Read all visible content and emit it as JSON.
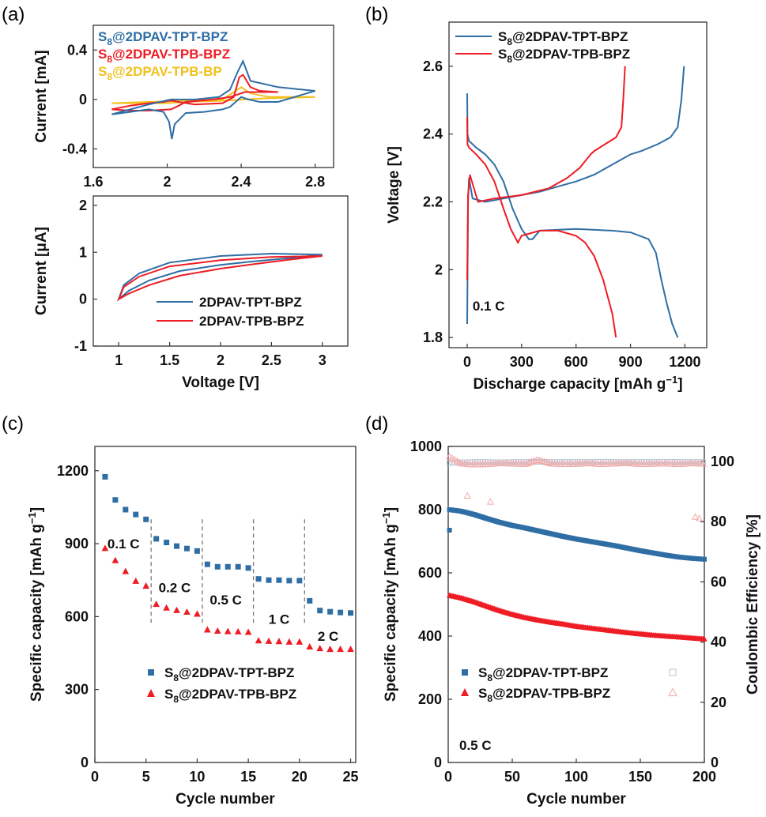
{
  "colors": {
    "tpt": "#2f6ea5",
    "tpb": "#ee1c24",
    "bp": "#f2c01e",
    "ce_tpt": "#b9c7d6",
    "ce_tpb": "#f3a8a8"
  },
  "chart_data": [
    {
      "id": "a_top",
      "panel_label": "(a)",
      "type": "line",
      "xlabel": "",
      "ylabel": "Current [mA]",
      "xlim": [
        1.6,
        2.9
      ],
      "ylim": [
        -0.55,
        0.6
      ],
      "xticks": [
        1.6,
        2.0,
        2.4,
        2.8
      ],
      "xtick_labels": [
        "1.6",
        "2",
        "2.4",
        "2.8"
      ],
      "yticks": [
        -0.4,
        0,
        0.4
      ],
      "ytick_labels": [
        "-0.4",
        "0",
        "0.4"
      ],
      "legend_position": "top-left",
      "legend": [
        {
          "pre": "S",
          "sub": "8",
          "post": "@2DPAV-TPT-BPZ",
          "color_key": "tpt"
        },
        {
          "pre": "S",
          "sub": "8",
          "post": "@2DPAV-TPB-BPZ",
          "color_key": "tpb"
        },
        {
          "pre": "S",
          "sub": "8",
          "post": "@2DPAV-TPB-BP",
          "color_key": "bp"
        }
      ],
      "series": [
        {
          "color_key": "bp",
          "closed": true,
          "x": [
            1.7,
            1.9,
            2.1,
            2.3,
            2.35,
            2.4,
            2.45,
            2.55,
            2.8,
            2.55,
            2.3,
            2.1,
            2.0,
            1.85,
            1.7
          ],
          "y": [
            -0.03,
            -0.02,
            -0.01,
            0.0,
            0.05,
            0.1,
            0.05,
            0.02,
            0.02,
            0.01,
            -0.01,
            -0.02,
            -0.03,
            -0.03,
            -0.03
          ]
        },
        {
          "color_key": "tpb",
          "closed": true,
          "x": [
            1.7,
            1.8,
            1.9,
            1.98,
            2.01,
            2.03,
            2.06,
            2.15,
            2.3,
            2.36,
            2.39,
            2.41,
            2.45,
            2.5,
            2.6,
            2.5,
            2.42,
            2.38,
            2.34,
            2.25,
            2.1,
            2.05,
            2.02,
            1.9,
            1.8,
            1.7
          ],
          "y": [
            -0.08,
            -0.05,
            -0.03,
            -0.02,
            -0.01,
            -0.01,
            -0.02,
            -0.04,
            -0.03,
            0.02,
            0.18,
            0.2,
            0.1,
            0.07,
            0.06,
            0.06,
            0.06,
            0.04,
            0.02,
            0.0,
            -0.02,
            -0.06,
            -0.08,
            -0.09,
            -0.09,
            -0.08
          ]
        },
        {
          "color_key": "tpt",
          "closed": true,
          "x": [
            1.7,
            1.8,
            1.9,
            1.98,
            2.01,
            2.025,
            2.04,
            2.1,
            2.2,
            2.3,
            2.34,
            2.37,
            2.4,
            2.44,
            2.5,
            2.6,
            2.8,
            2.6,
            2.45,
            2.41,
            2.38,
            2.34,
            2.28,
            2.15,
            2.05,
            2.02,
            1.9,
            1.8,
            1.7
          ],
          "y": [
            -0.12,
            -0.1,
            -0.08,
            -0.1,
            -0.18,
            -0.32,
            -0.2,
            -0.11,
            -0.1,
            -0.08,
            -0.06,
            -0.02,
            0.02,
            0.0,
            -0.02,
            -0.02,
            0.07,
            0.1,
            0.15,
            0.31,
            0.22,
            0.08,
            0.02,
            0.0,
            0.0,
            0.0,
            -0.04,
            -0.08,
            -0.12
          ]
        }
      ]
    },
    {
      "id": "a_bottom",
      "panel_label": "",
      "type": "line",
      "xlabel": "Voltage [V]",
      "ylabel_pre": "Current [",
      "ylabel_greek": "μ",
      "ylabel_post": "A]",
      "xlim": [
        0.75,
        3.25
      ],
      "ylim": [
        -1,
        2.2
      ],
      "xticks": [
        1,
        1.5,
        2,
        2.5,
        3
      ],
      "xtick_labels": [
        "1",
        "1.5",
        "2",
        "2.5",
        "3"
      ],
      "yticks": [
        -1,
        0,
        1,
        2
      ],
      "ytick_labels": [
        "-1",
        "0",
        "1",
        "2"
      ],
      "legend_position": "bottom-right",
      "legend": [
        {
          "pre": "2DPAV-TPT-BPZ",
          "sub": "",
          "post": "",
          "color_key": "tpt"
        },
        {
          "pre": "2DPAV-TPB-BPZ",
          "sub": "",
          "post": "",
          "color_key": "tpb"
        }
      ],
      "series": [
        {
          "color_key": "tpt",
          "closed": true,
          "x": [
            1.0,
            1.05,
            1.2,
            1.5,
            2.0,
            2.5,
            3.0,
            2.7,
            2.3,
            2.0,
            1.6,
            1.3,
            1.1,
            1.0
          ],
          "y": [
            0.0,
            0.3,
            0.55,
            0.78,
            0.92,
            0.97,
            0.95,
            0.88,
            0.8,
            0.73,
            0.6,
            0.4,
            0.18,
            0.0
          ]
        },
        {
          "color_key": "tpb",
          "closed": true,
          "x": [
            1.0,
            1.05,
            1.2,
            1.5,
            2.0,
            2.5,
            3.0,
            2.7,
            2.3,
            2.0,
            1.6,
            1.3,
            1.1,
            1.0
          ],
          "y": [
            0.0,
            0.26,
            0.48,
            0.7,
            0.83,
            0.9,
            0.92,
            0.85,
            0.74,
            0.65,
            0.5,
            0.3,
            0.12,
            0.0
          ]
        }
      ]
    },
    {
      "id": "b",
      "panel_label": "(b)",
      "type": "line",
      "xlabel_pre": "Discharge capacity [mAh g",
      "xlabel_sup": "−1",
      "xlabel_post": "]",
      "ylabel": "Voltage [V]",
      "xlim": [
        -100,
        1320
      ],
      "ylim": [
        1.77,
        2.73
      ],
      "xticks": [
        0,
        300,
        600,
        900,
        1200
      ],
      "xtick_labels": [
        "0",
        "300",
        "600",
        "900",
        "1200"
      ],
      "yticks": [
        1.8,
        2.0,
        2.2,
        2.4,
        2.6
      ],
      "ytick_labels": [
        "1.8",
        "2",
        "2.2",
        "2.4",
        "2.6"
      ],
      "legend_position": "top-left",
      "legend": [
        {
          "pre": "S",
          "sub": "8",
          "post": "@2DPAV-TPT-BPZ",
          "color_key": "tpt"
        },
        {
          "pre": "S",
          "sub": "8",
          "post": "@2DPAV-TPB-BPZ",
          "color_key": "tpb"
        }
      ],
      "annotation": "0.1 C",
      "series": [
        {
          "color_key": "tpt",
          "x": [
            0,
            2,
            10,
            50,
            100,
            150,
            200,
            250,
            300,
            340,
            360,
            400,
            600,
            800,
            900,
            1000,
            1040,
            1070,
            1100,
            1130,
            1160
          ],
          "y": [
            2.52,
            2.4,
            2.38,
            2.36,
            2.34,
            2.31,
            2.26,
            2.18,
            2.12,
            2.09,
            2.09,
            2.115,
            2.12,
            2.115,
            2.11,
            2.09,
            2.05,
            1.97,
            1.9,
            1.84,
            1.8
          ]
        },
        {
          "color_key": "tpt",
          "x": [
            0,
            5,
            10,
            30,
            100,
            200,
            300,
            400,
            500,
            600,
            700,
            800,
            900,
            960,
            1050,
            1120,
            1160,
            1180,
            1195
          ],
          "y": [
            1.84,
            2.2,
            2.27,
            2.21,
            2.2,
            2.21,
            2.22,
            2.23,
            2.245,
            2.26,
            2.28,
            2.31,
            2.34,
            2.35,
            2.37,
            2.39,
            2.42,
            2.5,
            2.6
          ]
        },
        {
          "color_key": "tpb",
          "x": [
            0,
            2,
            10,
            50,
            100,
            150,
            200,
            240,
            270,
            280,
            300,
            400,
            500,
            600,
            650,
            700,
            750,
            800,
            820
          ],
          "y": [
            2.45,
            2.37,
            2.36,
            2.34,
            2.31,
            2.26,
            2.18,
            2.12,
            2.09,
            2.08,
            2.1,
            2.115,
            2.115,
            2.1,
            2.08,
            2.04,
            1.97,
            1.87,
            1.8
          ]
        },
        {
          "color_key": "tpb",
          "x": [
            0,
            5,
            15,
            60,
            150,
            300,
            450,
            550,
            620,
            680,
            700,
            760,
            820,
            850,
            860,
            870
          ],
          "y": [
            1.97,
            2.22,
            2.28,
            2.2,
            2.21,
            2.22,
            2.24,
            2.27,
            2.3,
            2.34,
            2.35,
            2.37,
            2.39,
            2.42,
            2.5,
            2.6
          ]
        }
      ]
    },
    {
      "id": "c",
      "panel_label": "(c)",
      "type": "scatter",
      "xlabel": "Cycle number",
      "ylabel_pre": "Specific capacity [mAh g",
      "ylabel_sup": "−1",
      "ylabel_post": "]",
      "xlim": [
        0,
        25.5
      ],
      "ylim": [
        0,
        1300
      ],
      "xticks": [
        0,
        5,
        10,
        15,
        20,
        25
      ],
      "xtick_labels": [
        "0",
        "5",
        "10",
        "15",
        "20",
        "25"
      ],
      "yticks": [
        0,
        300,
        600,
        900,
        1200
      ],
      "ytick_labels": [
        "0",
        "300",
        "600",
        "900",
        "1200"
      ],
      "dividers": [
        5.5,
        10.5,
        15.5,
        20.5
      ],
      "rate_labels": [
        {
          "text": "0.1 C",
          "x": 2.8,
          "y": 880
        },
        {
          "text": "0.2 C",
          "x": 7.8,
          "y": 700
        },
        {
          "text": "0.5 C",
          "x": 12.8,
          "y": 650
        },
        {
          "text": "1 C",
          "x": 18.0,
          "y": 570
        },
        {
          "text": "2 C",
          "x": 22.8,
          "y": 500
        }
      ],
      "legend_position": "bottom-center",
      "legend": [
        {
          "pre": "S",
          "sub": "8",
          "post": "@2DPAV-TPT-BPZ",
          "color_key": "tpt",
          "marker": "square"
        },
        {
          "pre": "S",
          "sub": "8",
          "post": "@2DPAV-TPB-BPZ",
          "color_key": "tpb",
          "marker": "triangle"
        }
      ],
      "series": [
        {
          "color_key": "tpt",
          "marker": "square",
          "x": [
            1,
            2,
            3,
            4,
            5,
            6,
            7,
            8,
            9,
            10,
            11,
            12,
            13,
            14,
            15,
            16,
            17,
            18,
            19,
            20,
            21,
            22,
            23,
            24,
            25
          ],
          "y": [
            1175,
            1080,
            1040,
            1020,
            1000,
            920,
            905,
            890,
            880,
            870,
            815,
            805,
            805,
            805,
            800,
            755,
            750,
            750,
            748,
            748,
            665,
            625,
            620,
            617,
            615
          ]
        },
        {
          "color_key": "tpb",
          "marker": "triangle",
          "x": [
            1,
            2,
            3,
            4,
            5,
            6,
            7,
            8,
            9,
            10,
            11,
            12,
            13,
            14,
            15,
            16,
            17,
            18,
            19,
            20,
            21,
            22,
            23,
            24,
            25
          ],
          "y": [
            880,
            830,
            785,
            745,
            725,
            650,
            635,
            625,
            618,
            610,
            545,
            540,
            538,
            537,
            535,
            500,
            498,
            497,
            495,
            495,
            475,
            468,
            465,
            465,
            465
          ]
        }
      ]
    },
    {
      "id": "d",
      "panel_label": "(d)",
      "type": "scatter",
      "xlabel": "Cycle number",
      "ylabel_pre": "Specific capacity [mAh g",
      "ylabel_sup": "−1",
      "ylabel_post": "]",
      "y2label": "Coulombic Efficiency [%]",
      "xlim": [
        0,
        200
      ],
      "ylim": [
        0,
        1000
      ],
      "y2lim": [
        0,
        105
      ],
      "xticks": [
        0,
        50,
        100,
        150,
        200
      ],
      "xtick_labels": [
        "0",
        "50",
        "100",
        "150",
        "200"
      ],
      "yticks": [
        0,
        200,
        400,
        600,
        800,
        1000
      ],
      "ytick_labels": [
        "0",
        "200",
        "400",
        "600",
        "800",
        "1000"
      ],
      "y2ticks": [
        0,
        20,
        40,
        60,
        80,
        100
      ],
      "y2tick_labels": [
        "0",
        "20",
        "40",
        "60",
        "80",
        "100"
      ],
      "annotation": "0.5 C",
      "legend_position": "bottom-left",
      "legend": [
        {
          "pre": "S",
          "sub": "8",
          "post": "@2DPAV-TPT-BPZ",
          "color_key": "tpt",
          "marker": "square",
          "ce_marker": "open-square"
        },
        {
          "pre": "S",
          "sub": "8",
          "post": "@2DPAV-TPB-BPZ",
          "color_key": "tpb",
          "marker": "triangle",
          "ce_marker": "open-triangle"
        }
      ],
      "capacity_series": [
        {
          "color_key": "tpt",
          "marker": "square",
          "x": [
            1,
            10,
            20,
            30,
            40,
            50,
            60,
            70,
            80,
            90,
            100,
            110,
            120,
            130,
            140,
            150,
            160,
            170,
            180,
            190,
            200
          ],
          "y": [
            800,
            795,
            785,
            772,
            760,
            750,
            742,
            733,
            724,
            715,
            707,
            700,
            693,
            686,
            678,
            670,
            663,
            656,
            650,
            646,
            643
          ]
        },
        {
          "color_key": "tpb",
          "marker": "triangle",
          "x": [
            1,
            10,
            20,
            30,
            40,
            50,
            60,
            70,
            80,
            90,
            100,
            110,
            120,
            130,
            140,
            150,
            160,
            170,
            180,
            190,
            200
          ],
          "y": [
            528,
            520,
            508,
            494,
            480,
            468,
            458,
            450,
            443,
            437,
            430,
            425,
            420,
            415,
            410,
            406,
            402,
            399,
            396,
            393,
            390
          ]
        }
      ],
      "capacity_outliers": [
        {
          "color_key": "tpt",
          "x": 1,
          "y": 735
        }
      ],
      "ce_series": [
        {
          "color_key": "ce_tpt",
          "marker": "open-square",
          "x": [
            1,
            10,
            20,
            30,
            40,
            50,
            60,
            70,
            80,
            90,
            100,
            110,
            120,
            130,
            140,
            150,
            160,
            170,
            180,
            190,
            200
          ],
          "y": [
            99.5,
            99.7,
            99.8,
            99.8,
            99.7,
            99.8,
            99.8,
            99.9,
            99.8,
            99.8,
            99.8,
            99.8,
            99.9,
            99.8,
            99.8,
            99.8,
            99.8,
            99.9,
            99.8,
            99.8,
            99.8
          ]
        },
        {
          "color_key": "ce_tpb",
          "marker": "open-triangle",
          "x": [
            1,
            10,
            20,
            30,
            40,
            50,
            60,
            70,
            80,
            90,
            100,
            110,
            120,
            130,
            140,
            150,
            160,
            170,
            180,
            190,
            200
          ],
          "y": [
            101.5,
            99.2,
            98.9,
            99.0,
            99.3,
            99.2,
            99.0,
            100.5,
            99.2,
            99.0,
            99.1,
            99.3,
            99.0,
            99.2,
            99.4,
            99.0,
            99.1,
            99.2,
            99.0,
            99.3,
            99.1
          ]
        }
      ],
      "ce_outliers": [
        {
          "color_key": "ce_tpb",
          "x": 15,
          "y": 88.5
        },
        {
          "color_key": "ce_tpb",
          "x": 33,
          "y": 86.5
        },
        {
          "color_key": "ce_tpb",
          "x": 193,
          "y": 81.5
        },
        {
          "color_key": "ce_tpb",
          "x": 196,
          "y": 81.0
        }
      ]
    }
  ]
}
